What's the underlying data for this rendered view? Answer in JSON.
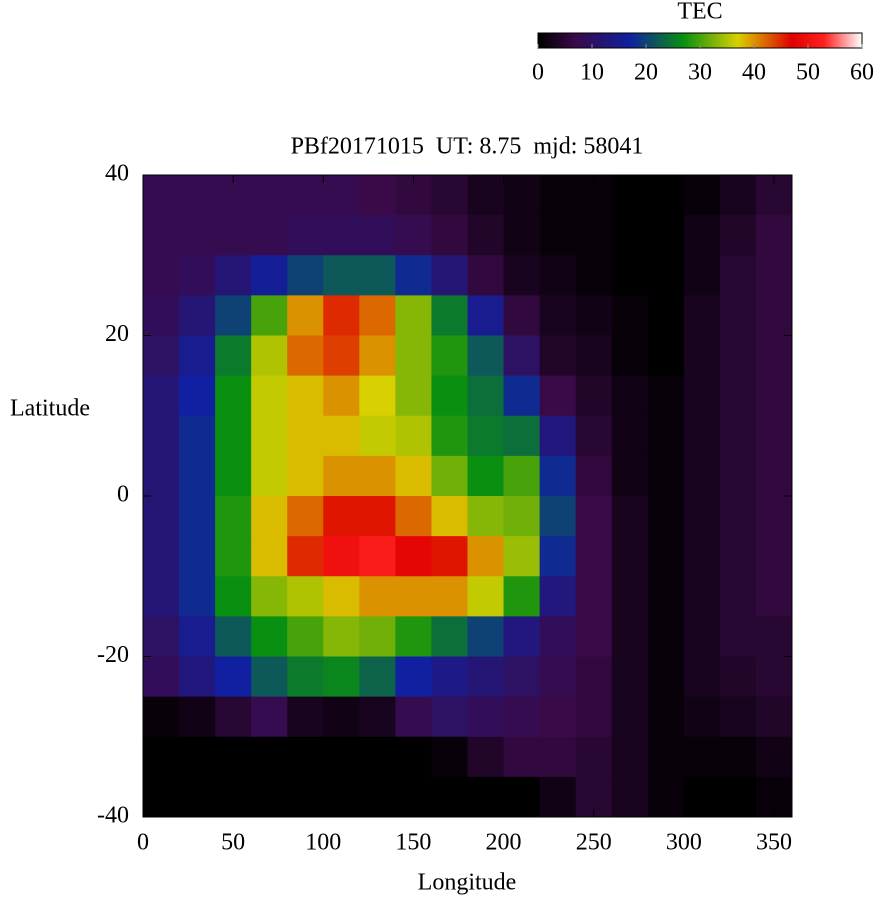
{
  "chart_data": {
    "type": "heatmap",
    "title": "PBf20171015  UT: 8.75  mjd: 58041",
    "xlabel": "Longitude",
    "ylabel": "Latitude",
    "colorbar_label": "TEC",
    "xlim": [
      0,
      360
    ],
    "ylim": [
      -40,
      40
    ],
    "xticks": [
      0,
      50,
      100,
      150,
      200,
      250,
      300,
      350
    ],
    "yticks": [
      -40,
      -20,
      0,
      20,
      40
    ],
    "clim": [
      0,
      60
    ],
    "cticks": [
      0,
      10,
      20,
      30,
      40,
      50,
      60
    ],
    "colorscale": [
      [
        0,
        "#000000"
      ],
      [
        7,
        "#3a0a48"
      ],
      [
        17,
        "#1020a0"
      ],
      [
        27,
        "#0a9010"
      ],
      [
        37,
        "#d8d000"
      ],
      [
        47,
        "#e00000"
      ],
      [
        53,
        "#ff2020"
      ],
      [
        60,
        "#ffffff"
      ]
    ],
    "x": [
      10,
      30,
      50,
      70,
      90,
      110,
      130,
      150,
      170,
      190,
      210,
      230,
      250,
      270,
      290,
      310,
      330,
      350
    ],
    "y": [
      37.5,
      32.5,
      27.5,
      22.5,
      17.5,
      12.5,
      7.5,
      2.5,
      -2.5,
      -7.5,
      -12.5,
      -17.5,
      -22.5,
      -27.5,
      -32.5,
      -37.5
    ],
    "z": [
      [
        8,
        8,
        8,
        8,
        8,
        8,
        7,
        6,
        5,
        3,
        2,
        1,
        1,
        0,
        0,
        1,
        3,
        5
      ],
      [
        8,
        8,
        8,
        8,
        9,
        9,
        9,
        8,
        6,
        4,
        2,
        1,
        1,
        0,
        0,
        2,
        4,
        6
      ],
      [
        8,
        9,
        12,
        16,
        20,
        22,
        22,
        18,
        12,
        6,
        3,
        2,
        1,
        0,
        0,
        2,
        5,
        6
      ],
      [
        9,
        12,
        20,
        30,
        40,
        45,
        42,
        33,
        25,
        15,
        6,
        3,
        2,
        1,
        0,
        3,
        5,
        6
      ],
      [
        10,
        15,
        25,
        35,
        42,
        44,
        40,
        33,
        28,
        22,
        10,
        4,
        3,
        1,
        0,
        3,
        5,
        6
      ],
      [
        12,
        17,
        27,
        36,
        38,
        40,
        37,
        33,
        27,
        24,
        18,
        7,
        4,
        2,
        1,
        3,
        5,
        6
      ],
      [
        12,
        18,
        27,
        36,
        38,
        38,
        36,
        35,
        28,
        25,
        24,
        13,
        5,
        2,
        1,
        3,
        5,
        6
      ],
      [
        12,
        18,
        27,
        36,
        38,
        40,
        40,
        38,
        32,
        27,
        30,
        18,
        6,
        2,
        1,
        3,
        5,
        6
      ],
      [
        12,
        18,
        28,
        38,
        42,
        46,
        46,
        42,
        38,
        33,
        32,
        20,
        7,
        3,
        1,
        3,
        5,
        6
      ],
      [
        12,
        18,
        28,
        38,
        45,
        50,
        52,
        48,
        46,
        40,
        34,
        18,
        7,
        3,
        1,
        3,
        5,
        6
      ],
      [
        12,
        18,
        27,
        33,
        35,
        38,
        40,
        40,
        40,
        36,
        28,
        13,
        7,
        3,
        1,
        3,
        5,
        6
      ],
      [
        10,
        15,
        22,
        27,
        30,
        33,
        32,
        28,
        24,
        20,
        13,
        9,
        7,
        3,
        1,
        3,
        5,
        5
      ],
      [
        9,
        13,
        17,
        22,
        25,
        26,
        23,
        17,
        14,
        12,
        10,
        8,
        6,
        3,
        1,
        3,
        4,
        5
      ],
      [
        1,
        2,
        5,
        8,
        3,
        2,
        3,
        8,
        10,
        9,
        8,
        7,
        6,
        3,
        1,
        2,
        3,
        4
      ],
      [
        0,
        0,
        0,
        0,
        0,
        0,
        0,
        0,
        1,
        4,
        6,
        6,
        5,
        3,
        1,
        1,
        1,
        2
      ],
      [
        0,
        0,
        0,
        0,
        0,
        0,
        0,
        0,
        0,
        0,
        0,
        2,
        5,
        3,
        1,
        0,
        0,
        1
      ]
    ]
  }
}
